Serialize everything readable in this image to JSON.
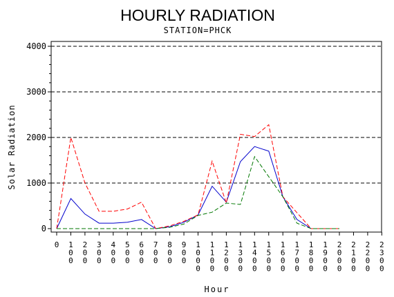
{
  "chart_data": {
    "type": "line",
    "title": "HOURLY RADIATION",
    "subtitle": "STATION=PHCK",
    "xlabel": "Hour",
    "ylabel": "Solar Radiation",
    "x": [
      0,
      100,
      200,
      300,
      400,
      500,
      600,
      700,
      800,
      900,
      1000,
      1100,
      1200,
      1300,
      1400,
      1500,
      1600,
      1700,
      1800,
      1900,
      2000,
      2100,
      2200,
      2300
    ],
    "ylim": [
      0,
      4000
    ],
    "yticks": [
      0,
      1000,
      2000,
      3000,
      4000
    ],
    "grid": "horizontal dashed",
    "series": [
      {
        "color": "#0000cc",
        "style": "solid",
        "values": [
          0,
          660,
          320,
          120,
          120,
          140,
          200,
          0,
          40,
          140,
          300,
          930,
          580,
          1470,
          1800,
          1700,
          700,
          200,
          0,
          0,
          0,
          null,
          null,
          null
        ]
      },
      {
        "color": "#ff0000",
        "style": "dashed",
        "values": [
          0,
          2000,
          1000,
          380,
          380,
          430,
          580,
          0,
          60,
          160,
          300,
          1480,
          560,
          2070,
          2020,
          2280,
          700,
          350,
          0,
          0,
          0,
          null,
          null,
          null
        ]
      },
      {
        "color": "#007700",
        "style": "dashed",
        "values": [
          0,
          0,
          0,
          0,
          0,
          0,
          0,
          0,
          30,
          100,
          290,
          360,
          560,
          530,
          1580,
          1140,
          700,
          120,
          0,
          0,
          0,
          null,
          null,
          null
        ]
      }
    ]
  }
}
